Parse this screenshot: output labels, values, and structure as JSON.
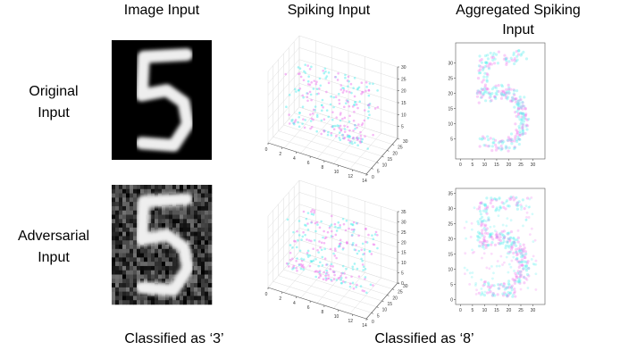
{
  "headers": {
    "image": "Image Input",
    "spiking": "Spiking Input",
    "aggregated": [
      "Aggregated Spiking",
      "Input"
    ]
  },
  "rows": [
    {
      "label": [
        "Original",
        "Input"
      ],
      "cube": {
        "xticks": [
          0,
          2,
          4,
          6,
          8,
          10,
          12,
          14
        ],
        "yticks": [
          0,
          5,
          10,
          15,
          20,
          25,
          30
        ],
        "zticks": [
          5,
          10,
          15,
          20,
          25,
          30
        ]
      },
      "scatter": {
        "xticks": [
          0,
          5,
          10,
          15,
          20,
          25,
          30
        ],
        "yticks": [
          5,
          10,
          15,
          20,
          25,
          30
        ]
      }
    },
    {
      "label": [
        "Adversarial",
        "Input"
      ],
      "cube": {
        "xticks": [
          0,
          2,
          4,
          6,
          8,
          10,
          12,
          14
        ],
        "yticks": [
          0,
          5,
          10,
          15,
          20,
          25,
          30
        ],
        "zticks": [
          0,
          5,
          10,
          15,
          20,
          25,
          30,
          35
        ]
      },
      "scatter": {
        "xticks": [
          0,
          5,
          10,
          15,
          20,
          25,
          30
        ],
        "yticks": [
          0,
          5,
          10,
          15,
          20,
          25,
          30,
          35
        ]
      }
    }
  ],
  "captions": [
    "Classified as ‘3’",
    "Classified as ‘8’"
  ]
}
